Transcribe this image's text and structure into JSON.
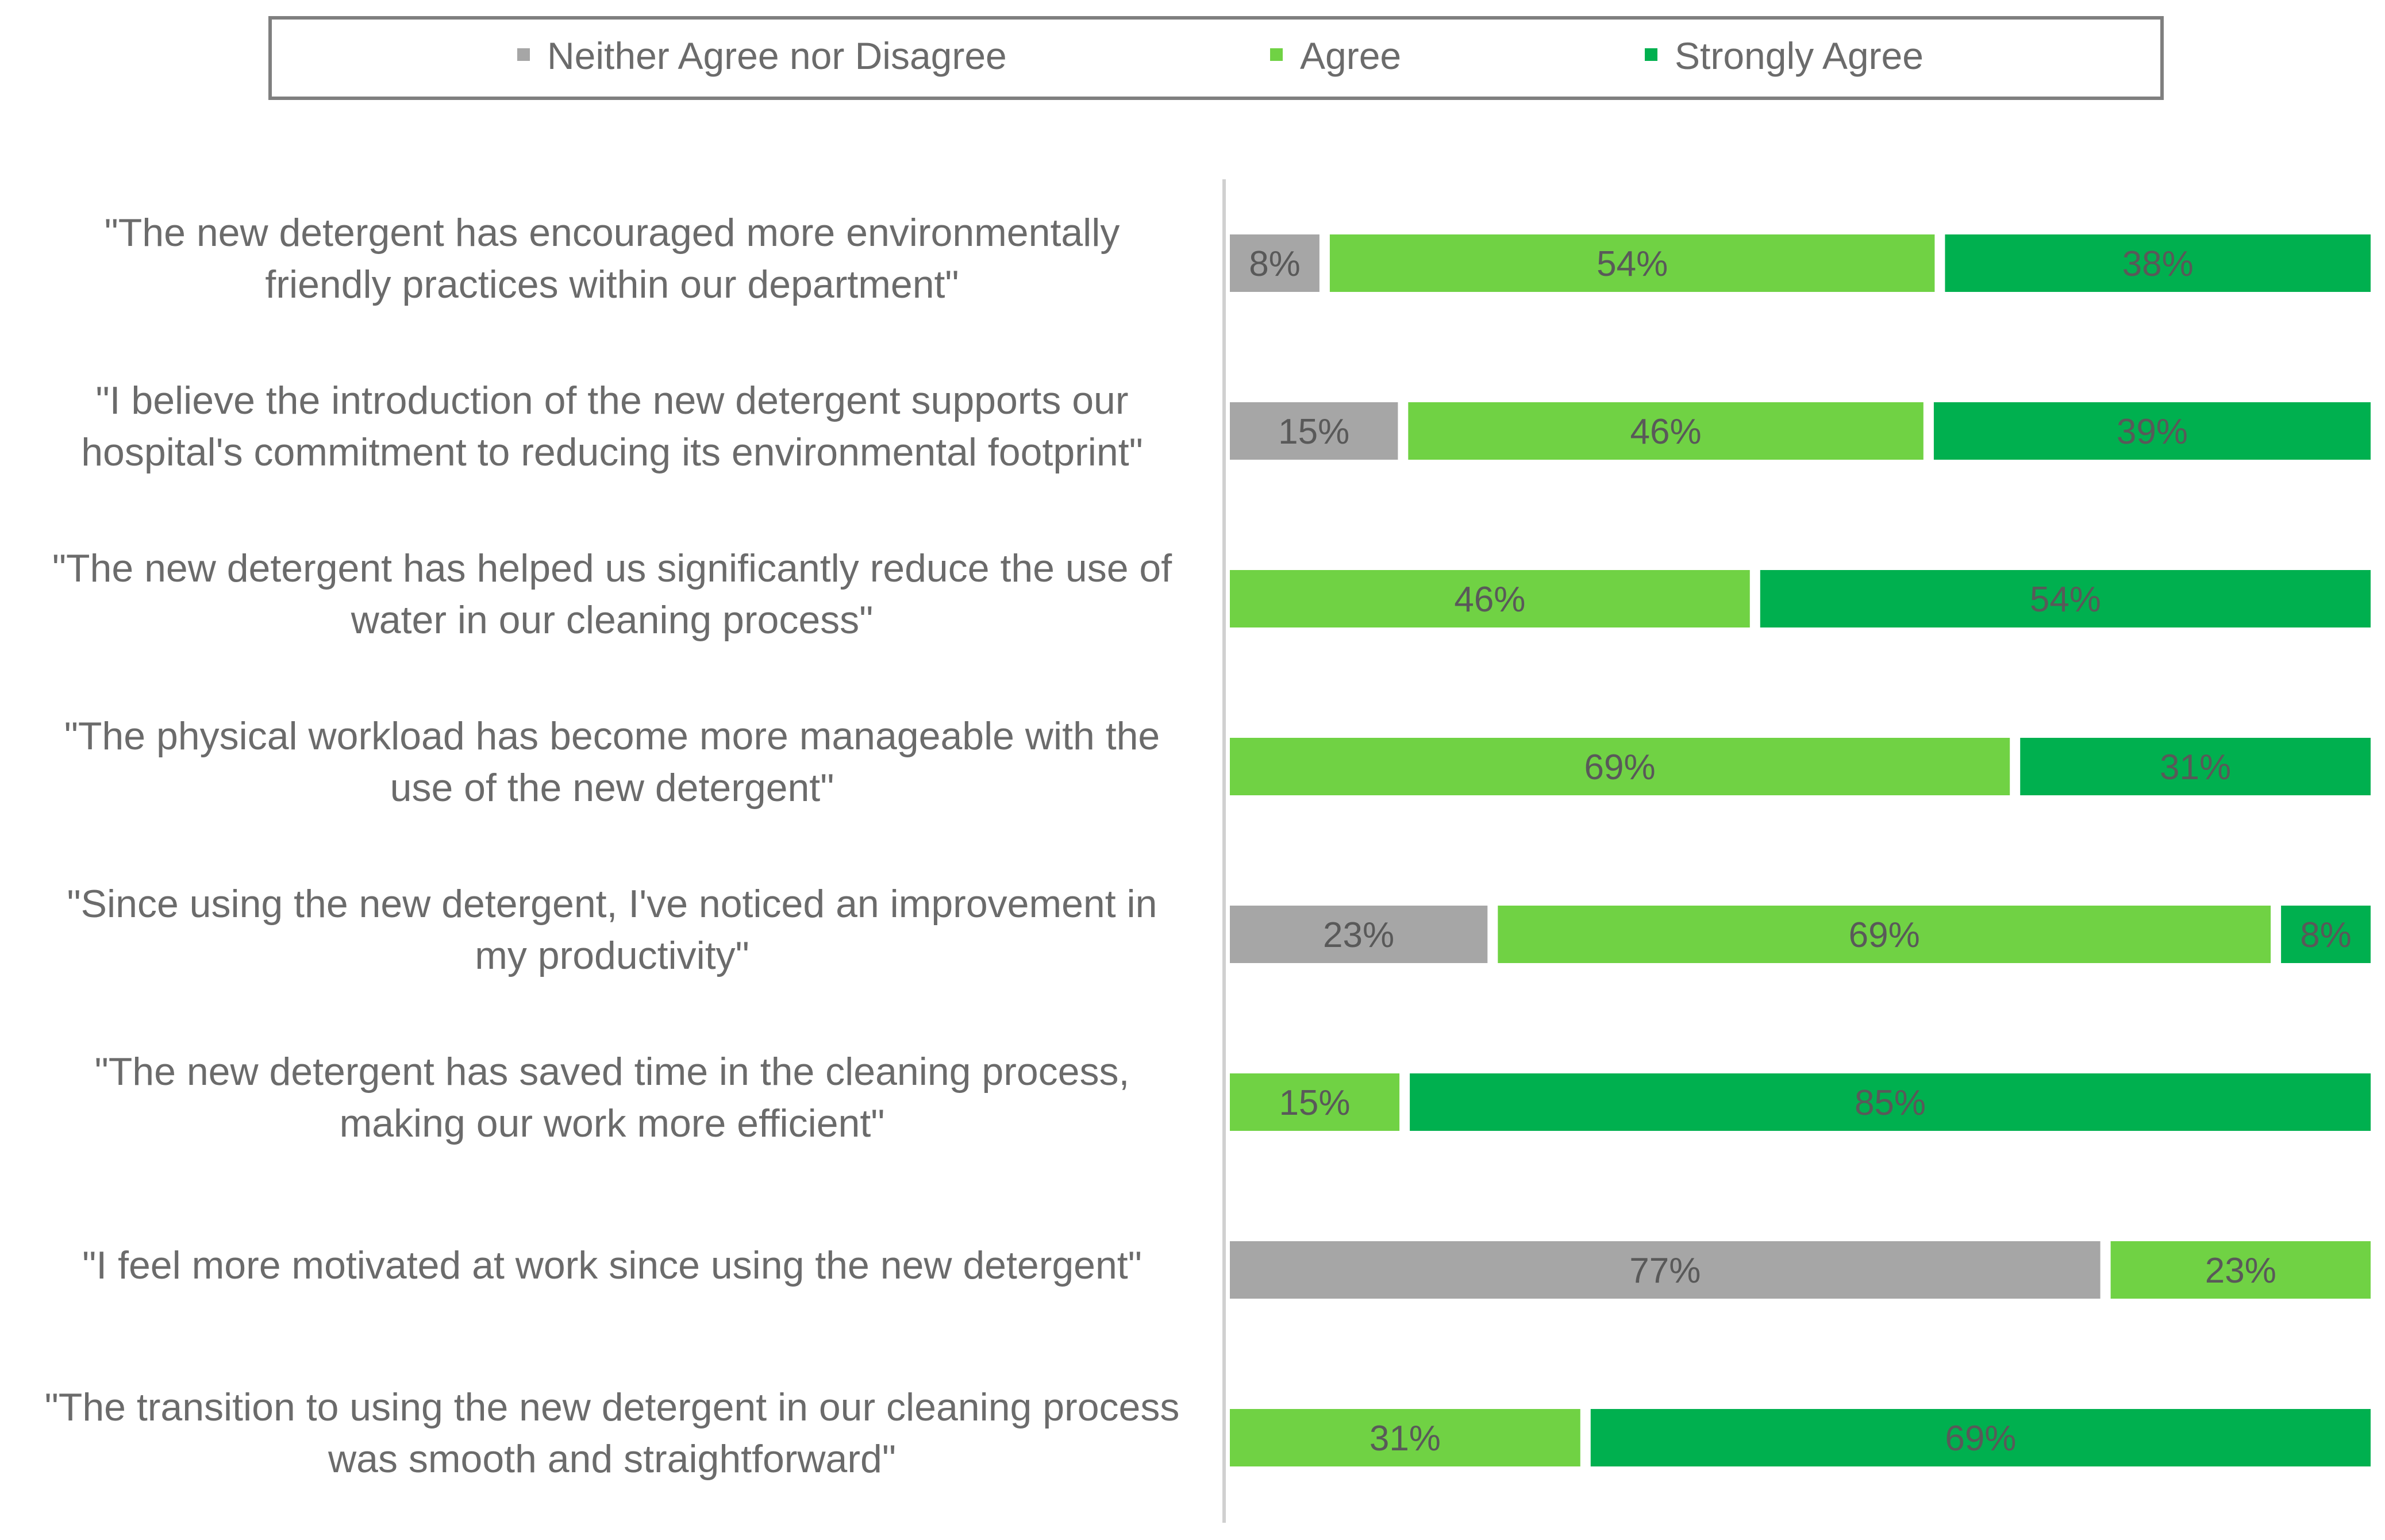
{
  "chart_data": {
    "type": "bar",
    "orientation": "horizontal",
    "stacked": "100%",
    "title": "",
    "xlabel": "",
    "ylabel": "",
    "xlim": [
      0,
      100
    ],
    "grid": false,
    "legend_position": "top",
    "colors": {
      "Neither Agree nor Disagree": "#a6a6a6",
      "Agree": "#70d244",
      "Strongly Agree": "#00b04f"
    },
    "categories": [
      [
        "\"The new detergent has encouraged more environmentally",
        "friendly practices within our department\""
      ],
      [
        "\"I believe the introduction of the new detergent supports our",
        "hospital's commitment to reducing its environmental footprint\""
      ],
      [
        "\"The new detergent has helped us significantly reduce the use of",
        "water in our cleaning process\""
      ],
      [
        "\"The physical workload has become more manageable with the",
        "use of the new detergent\""
      ],
      [
        "\"Since using the new detergent, I've noticed an improvement in",
        "my productivity\""
      ],
      [
        "\"The new detergent has saved time in the cleaning process,",
        "making our work more efficient\""
      ],
      [
        "\"I feel more motivated at work since using the new detergent\""
      ],
      [
        "\"The transition to using the new detergent in our cleaning process",
        "was smooth and straightforward\""
      ]
    ],
    "series": [
      {
        "name": "Neither Agree nor Disagree",
        "values": [
          8,
          15,
          0,
          0,
          23,
          0,
          77,
          0
        ]
      },
      {
        "name": "Agree",
        "values": [
          54,
          46,
          46,
          69,
          69,
          15,
          23,
          31
        ]
      },
      {
        "name": "Strongly Agree",
        "values": [
          38,
          39,
          54,
          31,
          8,
          85,
          0,
          69
        ]
      }
    ],
    "data_labels": [
      [
        "8%",
        "54%",
        "38%"
      ],
      [
        "15%",
        "46%",
        "39%"
      ],
      [
        "",
        "46%",
        "54%"
      ],
      [
        "",
        "69%",
        "31%"
      ],
      [
        "23%",
        "69%",
        "8%"
      ],
      [
        "",
        "15%",
        "85%"
      ],
      [
        "77%",
        "23%",
        ""
      ],
      [
        "",
        "31%",
        "69%"
      ]
    ]
  }
}
